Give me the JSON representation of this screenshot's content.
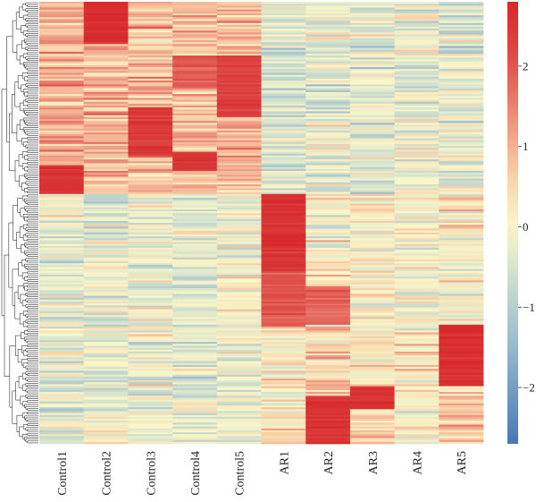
{
  "chart_data": {
    "type": "heatmap",
    "title": "",
    "xlabel": "",
    "ylabel": "",
    "columns": [
      "Control1",
      "Control2",
      "Control3",
      "Control4",
      "Control5",
      "AR1",
      "AR2",
      "AR3",
      "AR4",
      "AR5"
    ],
    "row_count": 230,
    "value_range": [
      -2.7,
      2.8
    ],
    "colorbar": {
      "ticks": [
        2,
        1,
        0,
        -1,
        -2
      ],
      "tick_labels": [
        "2",
        "1",
        "0",
        "−1",
        "−2"
      ],
      "colors": {
        "low": "#4a7fb8",
        "mid": "#fbf6c8",
        "high": "#d7282b"
      },
      "placement": "right"
    },
    "row_dendrogram": true,
    "clusters": [
      {
        "rows": [
          0,
          100
        ],
        "mean_values": [
          0.9,
          1.0,
          0.8,
          0.8,
          0.9,
          -0.5,
          -0.3,
          -0.3,
          -0.3,
          -0.3
        ]
      },
      {
        "rows": [
          100,
          170
        ],
        "mean_values": [
          -0.2,
          -0.2,
          -0.2,
          -0.3,
          -0.1,
          1.8,
          0.1,
          0.1,
          0.0,
          0.1
        ]
      },
      {
        "rows": [
          170,
          230
        ],
        "mean_values": [
          -0.3,
          -0.2,
          -0.2,
          -0.3,
          -0.2,
          0.1,
          0.5,
          0.4,
          0.2,
          0.6
        ]
      }
    ],
    "hot_blocks": [
      {
        "column": "Control2",
        "rows": [
          0,
          22
        ],
        "value": 2.7
      },
      {
        "column": "Control1",
        "rows": [
          85,
          100
        ],
        "value": 2.6
      },
      {
        "column": "Control3",
        "rows": [
          55,
          80
        ],
        "value": 2.4
      },
      {
        "column": "Control4",
        "rows": [
          28,
          45
        ],
        "value": 1.9
      },
      {
        "column": "Control4",
        "rows": [
          78,
          88
        ],
        "value": 2.5
      },
      {
        "column": "Control5",
        "rows": [
          28,
          60
        ],
        "value": 2.3
      },
      {
        "column": "AR1",
        "rows": [
          100,
          140
        ],
        "value": 2.6
      },
      {
        "column": "AR1",
        "rows": [
          140,
          168
        ],
        "value": 2.0
      },
      {
        "column": "AR2",
        "rows": [
          148,
          168
        ],
        "value": 1.8
      },
      {
        "column": "AR2",
        "rows": [
          205,
          230
        ],
        "value": 2.6
      },
      {
        "column": "AR3",
        "rows": [
          200,
          212
        ],
        "value": 2.6
      },
      {
        "column": "AR5",
        "rows": [
          168,
          200
        ],
        "value": 2.7
      }
    ]
  }
}
